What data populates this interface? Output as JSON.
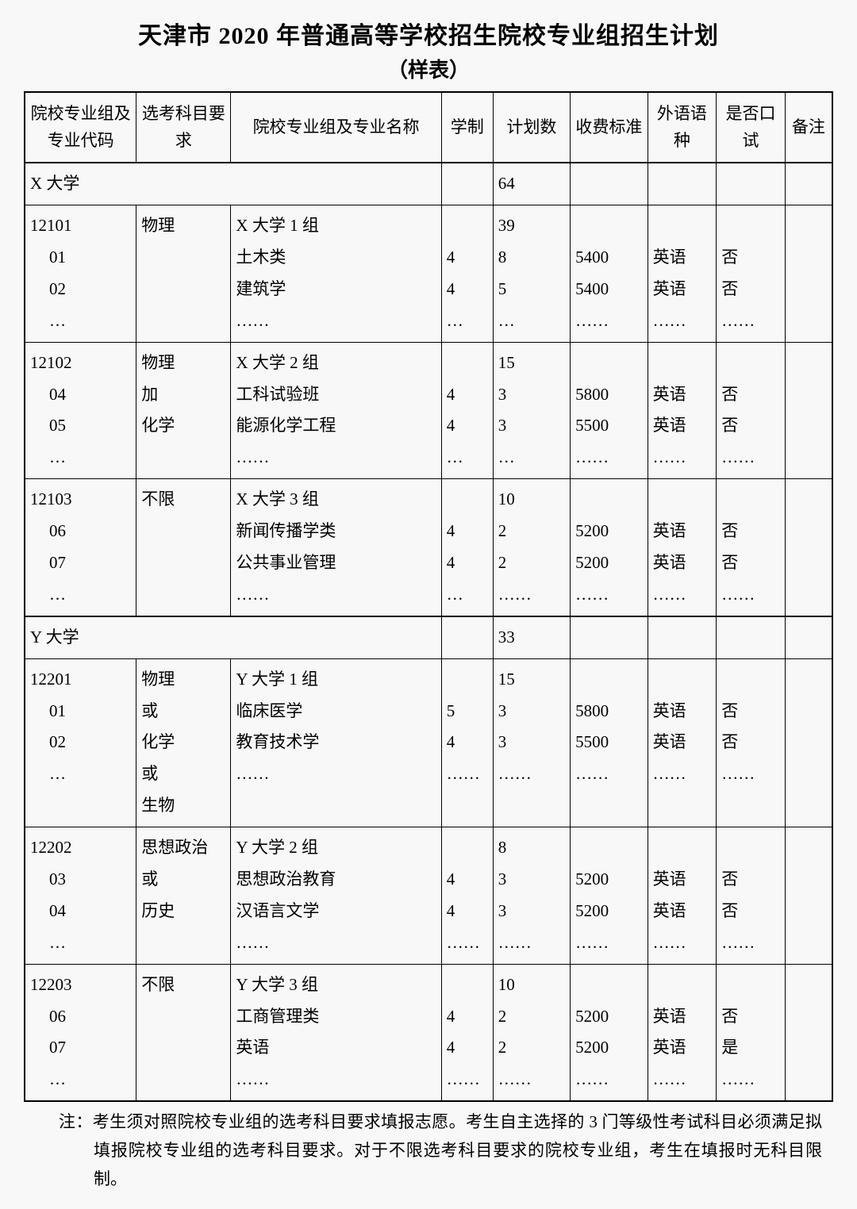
{
  "title": "天津市 2020 年普通高等学校招生院校专业组招生计划",
  "subtitle": "（样表）",
  "headers": {
    "code": "院校专业组及专业代码",
    "subject": "选考科目要求",
    "name": "院校专业组及专业名称",
    "duration": "学制",
    "plan": "计划数",
    "fee": "收费标准",
    "lang": "外语语种",
    "oral": "是否口试",
    "note": "备注"
  },
  "universities": [
    {
      "uni_name": "X 大学",
      "uni_plan": "64",
      "groups": [
        {
          "group_code": "12101",
          "subject_lines": [
            "物理"
          ],
          "group_name": "X 大学 1 组",
          "group_plan": "39",
          "rows": [
            {
              "code": "01",
              "name": "土木类",
              "dur": "4",
              "plan": "8",
              "fee": "5400",
              "lang": "英语",
              "oral": "否"
            },
            {
              "code": "02",
              "name": "建筑学",
              "dur": "4",
              "plan": "5",
              "fee": "5400",
              "lang": "英语",
              "oral": "否"
            },
            {
              "code": "…",
              "name": "……",
              "dur": "…",
              "plan": "…",
              "fee": "……",
              "lang": "……",
              "oral": "……"
            }
          ]
        },
        {
          "group_code": "12102",
          "subject_lines": [
            "物理",
            "加",
            "化学"
          ],
          "group_name": "X 大学 2 组",
          "group_plan": "15",
          "rows": [
            {
              "code": "04",
              "name": "工科试验班",
              "dur": "4",
              "plan": "3",
              "fee": "5800",
              "lang": "英语",
              "oral": "否"
            },
            {
              "code": "05",
              "name": "能源化学工程",
              "dur": "4",
              "plan": "3",
              "fee": "5500",
              "lang": "英语",
              "oral": "否"
            },
            {
              "code": "…",
              "name": "……",
              "dur": "…",
              "plan": "…",
              "fee": "……",
              "lang": "……",
              "oral": "……"
            }
          ]
        },
        {
          "group_code": "12103",
          "subject_lines": [
            "不限"
          ],
          "group_name": "X 大学 3 组",
          "group_plan": "10",
          "rows": [
            {
              "code": "06",
              "name": "新闻传播学类",
              "dur": "4",
              "plan": "2",
              "fee": "5200",
              "lang": "英语",
              "oral": "否"
            },
            {
              "code": "07",
              "name": "公共事业管理",
              "dur": "4",
              "plan": "2",
              "fee": "5200",
              "lang": "英语",
              "oral": "否"
            },
            {
              "code": "…",
              "name": "……",
              "dur": "…",
              "plan": "……",
              "fee": "……",
              "lang": "……",
              "oral": "……"
            }
          ]
        }
      ]
    },
    {
      "uni_name": "Y 大学",
      "uni_plan": "33",
      "groups": [
        {
          "group_code": "12201",
          "subject_lines": [
            "物理",
            "或",
            "化学",
            "或",
            "生物"
          ],
          "group_name": "Y 大学 1 组",
          "group_plan": "15",
          "rows": [
            {
              "code": "01",
              "name": "临床医学",
              "dur": "5",
              "plan": "3",
              "fee": "5800",
              "lang": "英语",
              "oral": "否"
            },
            {
              "code": "02",
              "name": "教育技术学",
              "dur": "4",
              "plan": "3",
              "fee": "5500",
              "lang": "英语",
              "oral": "否"
            },
            {
              "code": "…",
              "name": "……",
              "dur": "……",
              "plan": "……",
              "fee": "……",
              "lang": "……",
              "oral": "……"
            }
          ]
        },
        {
          "group_code": "12202",
          "subject_lines": [
            "思想政治",
            "或",
            "历史"
          ],
          "group_name": "Y 大学 2 组",
          "group_plan": "8",
          "rows": [
            {
              "code": "03",
              "name": "思想政治教育",
              "dur": "4",
              "plan": "3",
              "fee": "5200",
              "lang": "英语",
              "oral": "否"
            },
            {
              "code": "04",
              "name": "汉语言文学",
              "dur": "4",
              "plan": "3",
              "fee": "5200",
              "lang": "英语",
              "oral": "否"
            },
            {
              "code": "…",
              "name": "……",
              "dur": "……",
              "plan": "……",
              "fee": "……",
              "lang": "……",
              "oral": "……"
            }
          ]
        },
        {
          "group_code": "12203",
          "subject_lines": [
            "不限"
          ],
          "group_name": "Y 大学 3 组",
          "group_plan": "10",
          "rows": [
            {
              "code": "06",
              "name": "工商管理类",
              "dur": "4",
              "plan": "2",
              "fee": "5200",
              "lang": "英语",
              "oral": "否"
            },
            {
              "code": "07",
              "name": "英语",
              "dur": "4",
              "plan": "2",
              "fee": "5200",
              "lang": "英语",
              "oral": "是"
            },
            {
              "code": "…",
              "name": "……",
              "dur": "……",
              "plan": "……",
              "fee": "……",
              "lang": "……",
              "oral": "……"
            }
          ]
        }
      ]
    }
  ],
  "footnote": "注：考生须对照院校专业组的选考科目要求填报志愿。考生自主选择的 3 门等级性考试科目必须满足拟填报院校专业组的选考科目要求。对于不限选考科目要求的院校专业组，考生在填报时无科目限制。"
}
